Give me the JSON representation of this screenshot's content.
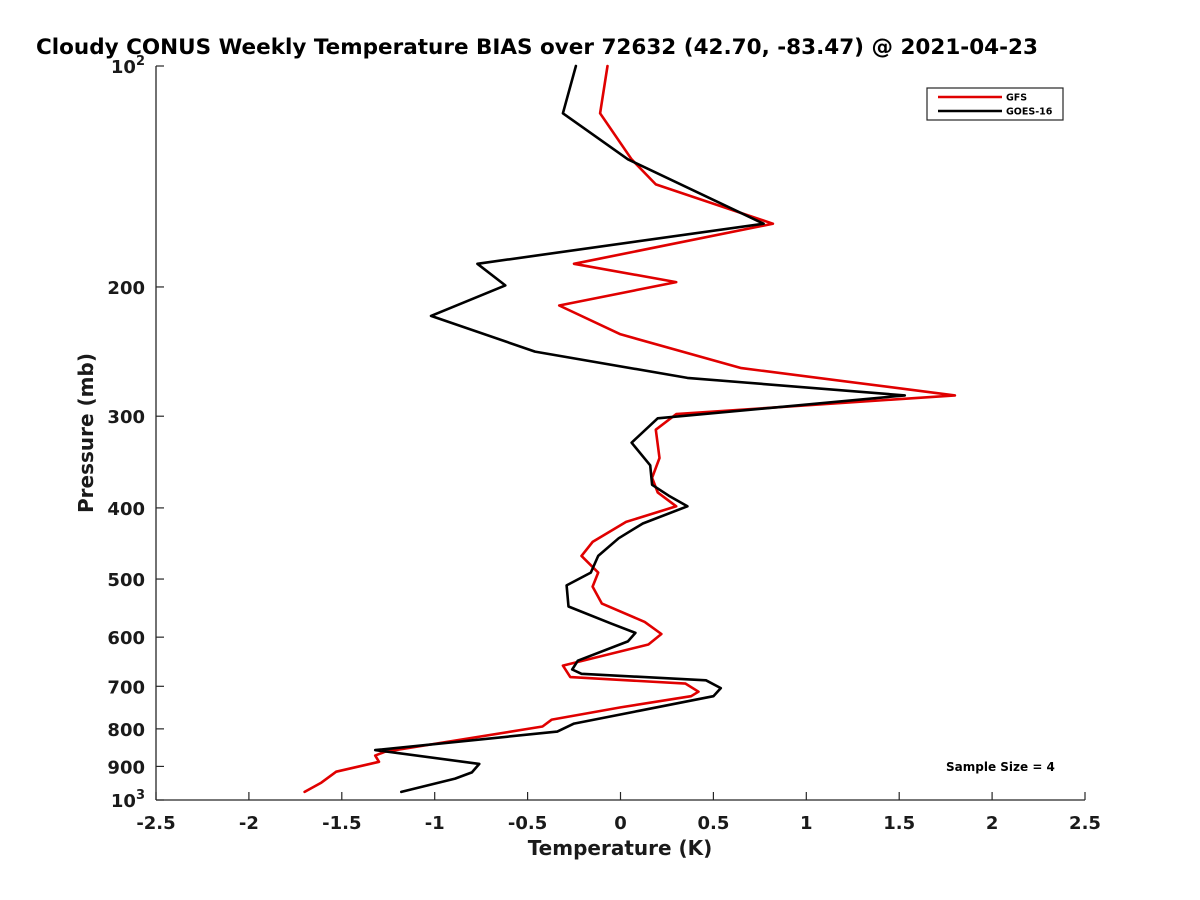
{
  "chart_data": {
    "type": "line",
    "title": "Cloudy CONUS Weekly Temperature BIAS over 72632 (42.70, -83.47) @ 2021-04-23",
    "xlabel": "Temperature (K)",
    "ylabel": "Pressure (mb)",
    "xlim": [
      -2.5,
      2.5
    ],
    "ylim": [
      100,
      1000
    ],
    "yscale": "log",
    "y_reversed": true,
    "xticks": [
      -2.5,
      -2,
      -1.5,
      -1,
      -0.5,
      0,
      0.5,
      1,
      1.5,
      2,
      2.5
    ],
    "xtick_labels": [
      "-2.5",
      "-2",
      "-1.5",
      "-1",
      "-0.5",
      "0",
      "0.5",
      "1",
      "1.5",
      "2",
      "2.5"
    ],
    "yticks": [
      {
        "value": 100,
        "base": "10",
        "exp": "2"
      },
      {
        "value": 200,
        "text": "200"
      },
      {
        "value": 300,
        "text": "300"
      },
      {
        "value": 400,
        "text": "400"
      },
      {
        "value": 500,
        "text": "500"
      },
      {
        "value": 600,
        "text": "600"
      },
      {
        "value": 700,
        "text": "700"
      },
      {
        "value": 800,
        "text": "800"
      },
      {
        "value": 900,
        "text": "900"
      },
      {
        "value": 1000,
        "base": "10",
        "exp": "3"
      }
    ],
    "grid": false,
    "legend_position": "top-right",
    "annotation": "Sample Size = 4",
    "series": [
      {
        "name": "GFS",
        "color": "#e00000",
        "points": [
          [
            -0.07,
            100
          ],
          [
            -0.11,
            116
          ],
          [
            0.06,
            134
          ],
          [
            0.19,
            145
          ],
          [
            0.82,
            164
          ],
          [
            -0.25,
            186
          ],
          [
            0.3,
            197
          ],
          [
            -0.33,
            212
          ],
          [
            0.0,
            232
          ],
          [
            0.65,
            258
          ],
          [
            1.8,
            281
          ],
          [
            0.3,
            298
          ],
          [
            0.19,
            313
          ],
          [
            0.21,
            342
          ],
          [
            0.17,
            364
          ],
          [
            0.2,
            381
          ],
          [
            0.3,
            398
          ],
          [
            0.03,
            418
          ],
          [
            -0.15,
            445
          ],
          [
            -0.21,
            465
          ],
          [
            -0.12,
            490
          ],
          [
            -0.15,
            512
          ],
          [
            -0.1,
            540
          ],
          [
            0.13,
            572
          ],
          [
            0.22,
            594
          ],
          [
            0.15,
            614
          ],
          [
            -0.31,
            656
          ],
          [
            -0.27,
            680
          ],
          [
            0.35,
            694
          ],
          [
            0.42,
            712
          ],
          [
            0.38,
            722
          ],
          [
            0.0,
            748
          ],
          [
            -0.37,
            777
          ],
          [
            -0.42,
            794
          ],
          [
            -1.27,
            860
          ],
          [
            -1.32,
            870
          ],
          [
            -1.3,
            887
          ],
          [
            -1.53,
            915
          ],
          [
            -1.61,
            947
          ],
          [
            -1.7,
            975
          ]
        ]
      },
      {
        "name": "GOES-16",
        "color": "#000000",
        "points": [
          [
            -0.24,
            100
          ],
          [
            -0.31,
            116
          ],
          [
            0.04,
            134
          ],
          [
            0.77,
            164
          ],
          [
            -0.77,
            186
          ],
          [
            -0.62,
            199
          ],
          [
            -1.02,
            219
          ],
          [
            -0.46,
            245
          ],
          [
            0.36,
            266
          ],
          [
            1.53,
            281
          ],
          [
            0.2,
            302
          ],
          [
            0.06,
            326
          ],
          [
            0.16,
            350
          ],
          [
            0.17,
            372
          ],
          [
            0.26,
            385
          ],
          [
            0.36,
            398
          ],
          [
            0.12,
            420
          ],
          [
            -0.01,
            440
          ],
          [
            -0.12,
            465
          ],
          [
            -0.16,
            490
          ],
          [
            -0.29,
            510
          ],
          [
            -0.28,
            545
          ],
          [
            -0.05,
            575
          ],
          [
            0.08,
            592
          ],
          [
            0.04,
            608
          ],
          [
            -0.23,
            646
          ],
          [
            -0.26,
            664
          ],
          [
            -0.21,
            673
          ],
          [
            0.46,
            687
          ],
          [
            0.54,
            704
          ],
          [
            0.5,
            722
          ],
          [
            0.1,
            756
          ],
          [
            -0.25,
            787
          ],
          [
            -0.34,
            807
          ],
          [
            -1.32,
            855
          ],
          [
            -0.76,
            893
          ],
          [
            -0.8,
            917
          ],
          [
            -0.89,
            935
          ],
          [
            -1.18,
            975
          ]
        ]
      }
    ]
  }
}
